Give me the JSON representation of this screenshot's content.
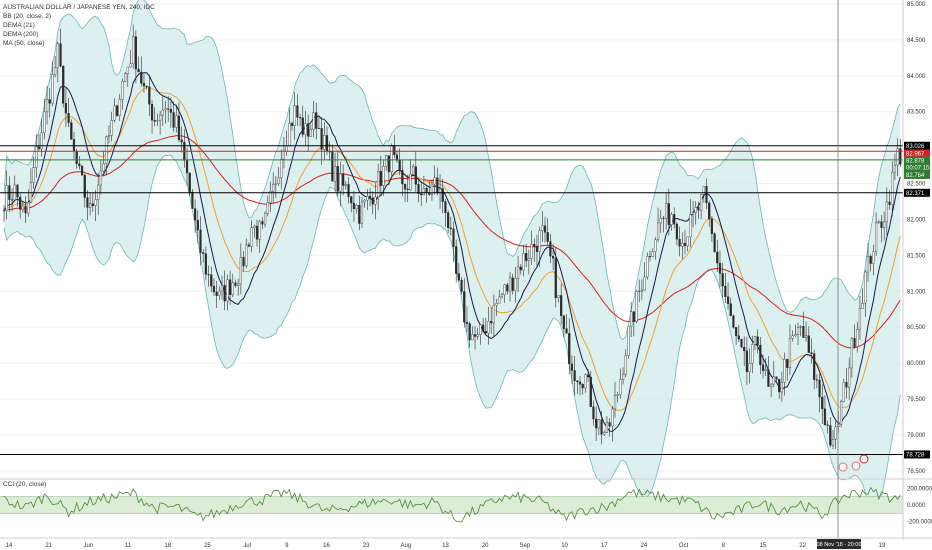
{
  "legend": {
    "title": "AUSTRALIAN DOLLAR / JAPANESE YEN, 240, IDC",
    "bb": "BB (20, close, 2)",
    "dema21": "DEMA (21)",
    "dema200": "DEMA (200)",
    "ma": "MA (50, close)",
    "cci": "CCI (20, close)"
  },
  "colors": {
    "candle_body": "#2b2b2b",
    "bb_fill": "#cfeaea",
    "bb_line": "#6fb6b6",
    "dema21": "#1a1a4a",
    "dema200": "#f0a030",
    "ma50": "#d62020",
    "cci_line": "#4a8a30",
    "cci_band": "#dcecd6",
    "black_line": "#000000",
    "red_line": "#d62020",
    "green_line": "#2e7d32"
  },
  "chart_data": {
    "type": "line",
    "title": "AUSTRALIAN DOLLAR / JAPANESE YEN, 240, IDC",
    "price_axis": {
      "ticks": [
        "85.000",
        "84.500",
        "84.000",
        "83.500",
        "83.000",
        "82.500",
        "82.000",
        "81.500",
        "81.000",
        "80.500",
        "80.000",
        "79.500",
        "79.000",
        "78.500"
      ],
      "range": [
        78.4,
        85.0
      ]
    },
    "cci_axis": {
      "ticks": [
        "200.0000",
        "0.0000",
        "-200.0000"
      ],
      "range": [
        -300,
        300
      ]
    },
    "time_axis": {
      "ticks": [
        "14",
        "21",
        "Jun",
        "11",
        "18",
        "25",
        "Jul",
        "9",
        "16",
        "23",
        "Aug",
        "13",
        "20",
        "Sep",
        "10",
        "17",
        "24",
        "Oct",
        "8",
        "15",
        "22",
        "Nov",
        "19"
      ],
      "crosshair_label": "08 Nov '18 - 20:00"
    },
    "horizontal_lines": [
      {
        "name": "resistance-high",
        "value": 83.026,
        "color": "black"
      },
      {
        "name": "red-level",
        "value": 82.95,
        "color": "red"
      },
      {
        "name": "green-level",
        "value": 82.83,
        "color": "green"
      },
      {
        "name": "support-mid",
        "value": 82.371,
        "color": "black"
      },
      {
        "name": "support-low",
        "value": 78.728,
        "color": "black"
      }
    ],
    "price_tags": [
      {
        "label": "83.026",
        "value": 83.026,
        "color": "#000000"
      },
      {
        "label": "82.967",
        "value": 82.92,
        "color": "#d62020"
      },
      {
        "label": "82.878",
        "value": 82.82,
        "color": "#2e7d32"
      },
      {
        "label": "00:07:15",
        "value": 82.72,
        "color": "#2e7d32"
      },
      {
        "label": "82.764",
        "value": 82.62,
        "color": "#2e7d32"
      },
      {
        "label": "82.371",
        "value": 82.371,
        "color": "#000000"
      },
      {
        "label": "78.728",
        "value": 78.728,
        "color": "#000000"
      }
    ],
    "price_anchors": [
      [
        0,
        82.3
      ],
      [
        4,
        82.4
      ],
      [
        8,
        82.0
      ],
      [
        12,
        82.9
      ],
      [
        16,
        83.6
      ],
      [
        20,
        84.3
      ],
      [
        24,
        83.2
      ],
      [
        28,
        82.6
      ],
      [
        32,
        82.1
      ],
      [
        36,
        82.7
      ],
      [
        40,
        83.3
      ],
      [
        44,
        83.9
      ],
      [
        48,
        84.4
      ],
      [
        52,
        83.8
      ],
      [
        56,
        83.4
      ],
      [
        60,
        83.6
      ],
      [
        64,
        83.3
      ],
      [
        68,
        82.6
      ],
      [
        72,
        81.7
      ],
      [
        76,
        81.2
      ],
      [
        80,
        80.9
      ],
      [
        84,
        81.1
      ],
      [
        88,
        81.3
      ],
      [
        92,
        81.9
      ],
      [
        96,
        81.8
      ],
      [
        100,
        82.4
      ],
      [
        104,
        83.1
      ],
      [
        108,
        83.5
      ],
      [
        112,
        83.2
      ],
      [
        116,
        83.4
      ],
      [
        120,
        82.9
      ],
      [
        124,
        82.5
      ],
      [
        128,
        82.4
      ],
      [
        132,
        82.1
      ],
      [
        136,
        82.3
      ],
      [
        140,
        82.6
      ],
      [
        144,
        82.9
      ],
      [
        148,
        82.4
      ],
      [
        152,
        82.6
      ],
      [
        156,
        82.3
      ],
      [
        160,
        82.5
      ],
      [
        164,
        82.2
      ],
      [
        168,
        81.2
      ],
      [
        172,
        80.5
      ],
      [
        176,
        80.3
      ],
      [
        180,
        80.6
      ],
      [
        184,
        80.9
      ],
      [
        188,
        81.1
      ],
      [
        192,
        81.4
      ],
      [
        196,
        81.6
      ],
      [
        200,
        81.8
      ],
      [
        204,
        81.3
      ],
      [
        208,
        80.4
      ],
      [
        212,
        79.9
      ],
      [
        216,
        79.8
      ],
      [
        220,
        79.2
      ],
      [
        224,
        79.0
      ],
      [
        228,
        79.6
      ],
      [
        232,
        80.4
      ],
      [
        236,
        81.0
      ],
      [
        240,
        81.6
      ],
      [
        244,
        82.0
      ],
      [
        248,
        82.1
      ],
      [
        252,
        81.7
      ],
      [
        256,
        82.0
      ],
      [
        260,
        82.3
      ],
      [
        264,
        81.6
      ],
      [
        268,
        80.9
      ],
      [
        272,
        80.3
      ],
      [
        276,
        79.9
      ],
      [
        280,
        80.3
      ],
      [
        284,
        79.6
      ],
      [
        288,
        79.7
      ],
      [
        292,
        80.2
      ],
      [
        296,
        80.5
      ],
      [
        300,
        80.0
      ],
      [
        304,
        79.4
      ],
      [
        308,
        78.8
      ],
      [
        312,
        79.6
      ],
      [
        316,
        80.4
      ],
      [
        320,
        81.2
      ],
      [
        324,
        81.8
      ],
      [
        328,
        82.2
      ],
      [
        332,
        82.9
      ]
    ],
    "cci_anchors": [
      [
        0,
        60
      ],
      [
        8,
        -30
      ],
      [
        16,
        120
      ],
      [
        24,
        -80
      ],
      [
        32,
        40
      ],
      [
        40,
        90
      ],
      [
        48,
        140
      ],
      [
        56,
        -40
      ],
      [
        64,
        -20
      ],
      [
        72,
        -150
      ],
      [
        80,
        -90
      ],
      [
        88,
        30
      ],
      [
        96,
        60
      ],
      [
        104,
        150
      ],
      [
        112,
        40
      ],
      [
        120,
        -80
      ],
      [
        128,
        -20
      ],
      [
        136,
        30
      ],
      [
        144,
        60
      ],
      [
        152,
        -10
      ],
      [
        160,
        40
      ],
      [
        168,
        -180
      ],
      [
        176,
        -60
      ],
      [
        184,
        80
      ],
      [
        192,
        90
      ],
      [
        200,
        40
      ],
      [
        208,
        -160
      ],
      [
        216,
        -60
      ],
      [
        224,
        -20
      ],
      [
        232,
        150
      ],
      [
        240,
        120
      ],
      [
        248,
        70
      ],
      [
        256,
        40
      ],
      [
        264,
        -150
      ],
      [
        272,
        -80
      ],
      [
        280,
        30
      ],
      [
        288,
        -60
      ],
      [
        296,
        20
      ],
      [
        304,
        -120
      ],
      [
        312,
        110
      ],
      [
        320,
        170
      ],
      [
        328,
        110
      ],
      [
        332,
        70
      ]
    ]
  }
}
